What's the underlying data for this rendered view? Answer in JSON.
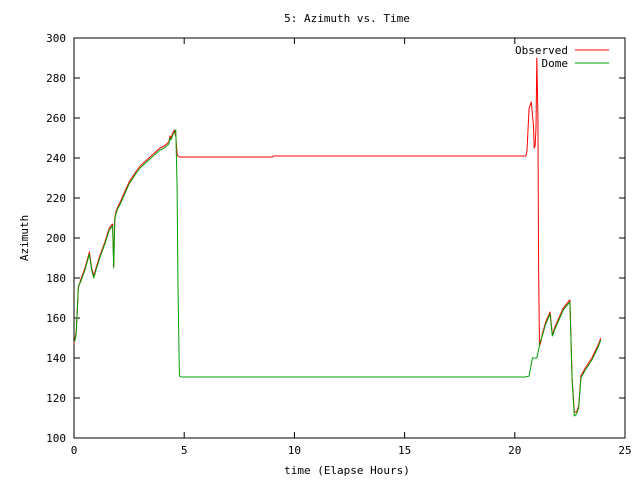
{
  "chart_data": {
    "type": "line",
    "title": "5: Azimuth vs. Time",
    "xlabel": "time (Elapse Hours)",
    "ylabel": "Azimuth",
    "xlim": [
      0,
      25
    ],
    "ylim": [
      100,
      300
    ],
    "xticks": [
      0,
      5,
      10,
      15,
      20,
      25
    ],
    "yticks": [
      100,
      120,
      140,
      160,
      180,
      200,
      220,
      240,
      260,
      280,
      300
    ],
    "grid": false,
    "legend_position": "top-right",
    "series": [
      {
        "name": "Observed",
        "color": "#ff0000",
        "x": [
          0.0,
          0.05,
          0.1,
          0.2,
          0.3,
          0.5,
          0.7,
          0.8,
          0.9,
          1.0,
          1.2,
          1.4,
          1.6,
          1.75,
          1.8,
          1.85,
          1.9,
          2.0,
          2.1,
          2.3,
          2.5,
          2.8,
          3.0,
          3.3,
          3.6,
          3.9,
          4.1,
          4.3,
          4.35,
          4.4,
          4.5,
          4.55,
          4.62,
          4.68,
          4.72,
          4.78,
          4.85,
          5.0,
          7.0,
          9.0,
          9.05,
          12.0,
          15.0,
          18.0,
          20.5,
          20.55,
          20.65,
          20.75,
          20.85,
          20.88,
          20.92,
          20.96,
          21.0,
          21.05,
          21.08,
          21.12,
          21.18,
          21.25,
          21.4,
          21.6,
          21.7,
          21.75,
          21.8,
          22.0,
          22.2,
          22.5,
          22.6,
          22.7,
          22.8,
          22.9,
          23.0,
          23.2,
          23.5,
          23.8,
          23.9
        ],
        "y": [
          147,
          150,
          153,
          175,
          179,
          185,
          193,
          185,
          181,
          185,
          192,
          198,
          205,
          207,
          186,
          210,
          213,
          216,
          218,
          223,
          228,
          233,
          236,
          239,
          242,
          245,
          246,
          248,
          251,
          250,
          253,
          254,
          251,
          242,
          241,
          240.5,
          240.5,
          240.5,
          240.5,
          240.5,
          241,
          241,
          241,
          241,
          241,
          243,
          265,
          268,
          256,
          245,
          246,
          255,
          290,
          262,
          185,
          146,
          148,
          152,
          158,
          163,
          152,
          153,
          155,
          160,
          165,
          169,
          130,
          113,
          113,
          116,
          131,
          135,
          140,
          147,
          150
        ]
      },
      {
        "name": "Dome",
        "color": "#00a000",
        "x": [
          0.0,
          0.05,
          0.1,
          0.2,
          0.3,
          0.5,
          0.7,
          0.8,
          0.9,
          1.0,
          1.2,
          1.4,
          1.6,
          1.75,
          1.8,
          1.85,
          1.9,
          2.0,
          2.1,
          2.3,
          2.5,
          2.8,
          3.0,
          3.3,
          3.6,
          3.9,
          4.1,
          4.3,
          4.35,
          4.4,
          4.5,
          4.55,
          4.62,
          4.68,
          4.72,
          4.78,
          4.85,
          5.0,
          7.0,
          9.0,
          12.0,
          15.0,
          18.0,
          20.0,
          20.5,
          20.65,
          20.8,
          21.0,
          21.1,
          21.12,
          21.18,
          21.25,
          21.4,
          21.6,
          21.7,
          21.75,
          21.8,
          22.0,
          22.2,
          22.5,
          22.6,
          22.7,
          22.8,
          22.9,
          23.0,
          23.2,
          23.5,
          23.8,
          23.9
        ],
        "y": [
          148,
          149,
          152,
          176,
          178,
          184,
          192,
          184,
          180,
          184,
          191,
          197,
          204,
          206,
          185,
          209,
          212,
          215,
          217,
          222,
          227,
          232,
          235,
          238,
          241,
          244,
          245,
          247,
          250,
          249,
          252,
          253,
          254,
          225,
          175,
          131,
          130.5,
          130.5,
          130.5,
          130.5,
          130.5,
          130.5,
          130.5,
          130.5,
          130.5,
          131,
          140,
          140,
          145,
          147,
          149,
          151,
          157,
          162,
          151,
          152,
          154,
          159,
          164,
          168,
          129,
          111,
          112,
          115,
          130,
          134,
          139,
          146,
          149
        ]
      }
    ]
  }
}
